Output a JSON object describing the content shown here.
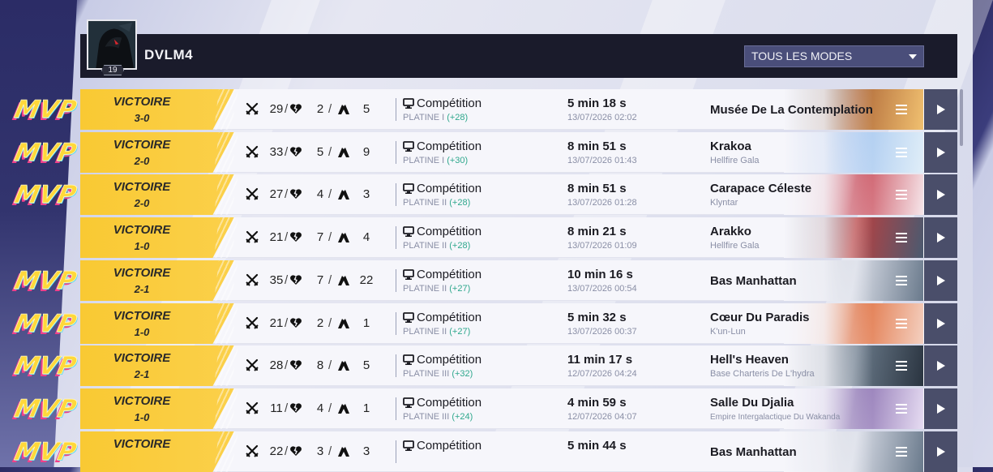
{
  "player": {
    "name": "DVLM4",
    "level": "19"
  },
  "filter": {
    "selected": "TOUS LES MODES"
  },
  "icons": {
    "kills": "crossed-swords-icon",
    "deaths": "broken-heart-icon",
    "assists": "hands-icon",
    "mode": "monitor-icon",
    "details": "menu-icon",
    "replay": "play-icon",
    "mvp": "mvp-badge"
  },
  "colors": {
    "win": "#f9c933",
    "delta": "#2fa88d",
    "header": "#1a1b2b",
    "play": "#4a4e6a"
  },
  "matches": [
    {
      "mvp": true,
      "result": "VICTOIRE",
      "score": "3-0",
      "kills": "29",
      "deaths": "2",
      "assists": "5",
      "mode": "Compétition",
      "rank": "PLATINE I",
      "delta": "(+28)",
      "duration": "5 min 18 s",
      "date": "13/07/2026 02:02",
      "map": "Musée De La Contemplation",
      "region": ""
    },
    {
      "mvp": true,
      "result": "VICTOIRE",
      "score": "2-0",
      "kills": "33",
      "deaths": "5",
      "assists": "9",
      "mode": "Compétition",
      "rank": "PLATINE I",
      "delta": "(+30)",
      "duration": "8 min 51 s",
      "date": "13/07/2026 01:43",
      "map": "Krakoa",
      "region": "Hellfire Gala"
    },
    {
      "mvp": true,
      "result": "VICTOIRE",
      "score": "2-0",
      "kills": "27",
      "deaths": "4",
      "assists": "3",
      "mode": "Compétition",
      "rank": "PLATINE II",
      "delta": "(+28)",
      "duration": "8 min 51 s",
      "date": "13/07/2026 01:28",
      "map": "Carapace Céleste",
      "region": "Klyntar"
    },
    {
      "mvp": false,
      "result": "VICTOIRE",
      "score": "1-0",
      "kills": "21",
      "deaths": "7",
      "assists": "4",
      "mode": "Compétition",
      "rank": "PLATINE II",
      "delta": "(+28)",
      "duration": "8 min 21 s",
      "date": "13/07/2026 01:09",
      "map": "Arakko",
      "region": "Hellfire Gala"
    },
    {
      "mvp": true,
      "result": "VICTOIRE",
      "score": "2-1",
      "kills": "35",
      "deaths": "7",
      "assists": "22",
      "mode": "Compétition",
      "rank": "PLATINE II",
      "delta": "(+27)",
      "duration": "10 min 16 s",
      "date": "13/07/2026 00:54",
      "map": "Bas Manhattan",
      "region": ""
    },
    {
      "mvp": true,
      "result": "VICTOIRE",
      "score": "1-0",
      "kills": "21",
      "deaths": "2",
      "assists": "1",
      "mode": "Compétition",
      "rank": "PLATINE II",
      "delta": "(+27)",
      "duration": "5 min 32 s",
      "date": "13/07/2026 00:37",
      "map": "Cœur Du Paradis",
      "region": "K'un-Lun"
    },
    {
      "mvp": true,
      "result": "VICTOIRE",
      "score": "2-1",
      "kills": "28",
      "deaths": "8",
      "assists": "5",
      "mode": "Compétition",
      "rank": "PLATINE III",
      "delta": "(+32)",
      "duration": "11 min 17 s",
      "date": "12/07/2026 04:24",
      "map": "Hell's Heaven",
      "region": "Base Charteris De L'hydra"
    },
    {
      "mvp": true,
      "result": "VICTOIRE",
      "score": "1-0",
      "kills": "11",
      "deaths": "4",
      "assists": "1",
      "mode": "Compétition",
      "rank": "PLATINE III",
      "delta": "(+24)",
      "duration": "4 min 59 s",
      "date": "12/07/2026 04:07",
      "map": "Salle Du Djalia",
      "region": "Empire Intergalactique Du Wakanda"
    },
    {
      "mvp": true,
      "result": "VICTOIRE",
      "score": "",
      "kills": "22",
      "deaths": "3",
      "assists": "3",
      "mode": "Compétition",
      "rank": "",
      "delta": "",
      "duration": "5 min 44 s",
      "date": "",
      "map": "Bas Manhattan",
      "region": ""
    }
  ]
}
